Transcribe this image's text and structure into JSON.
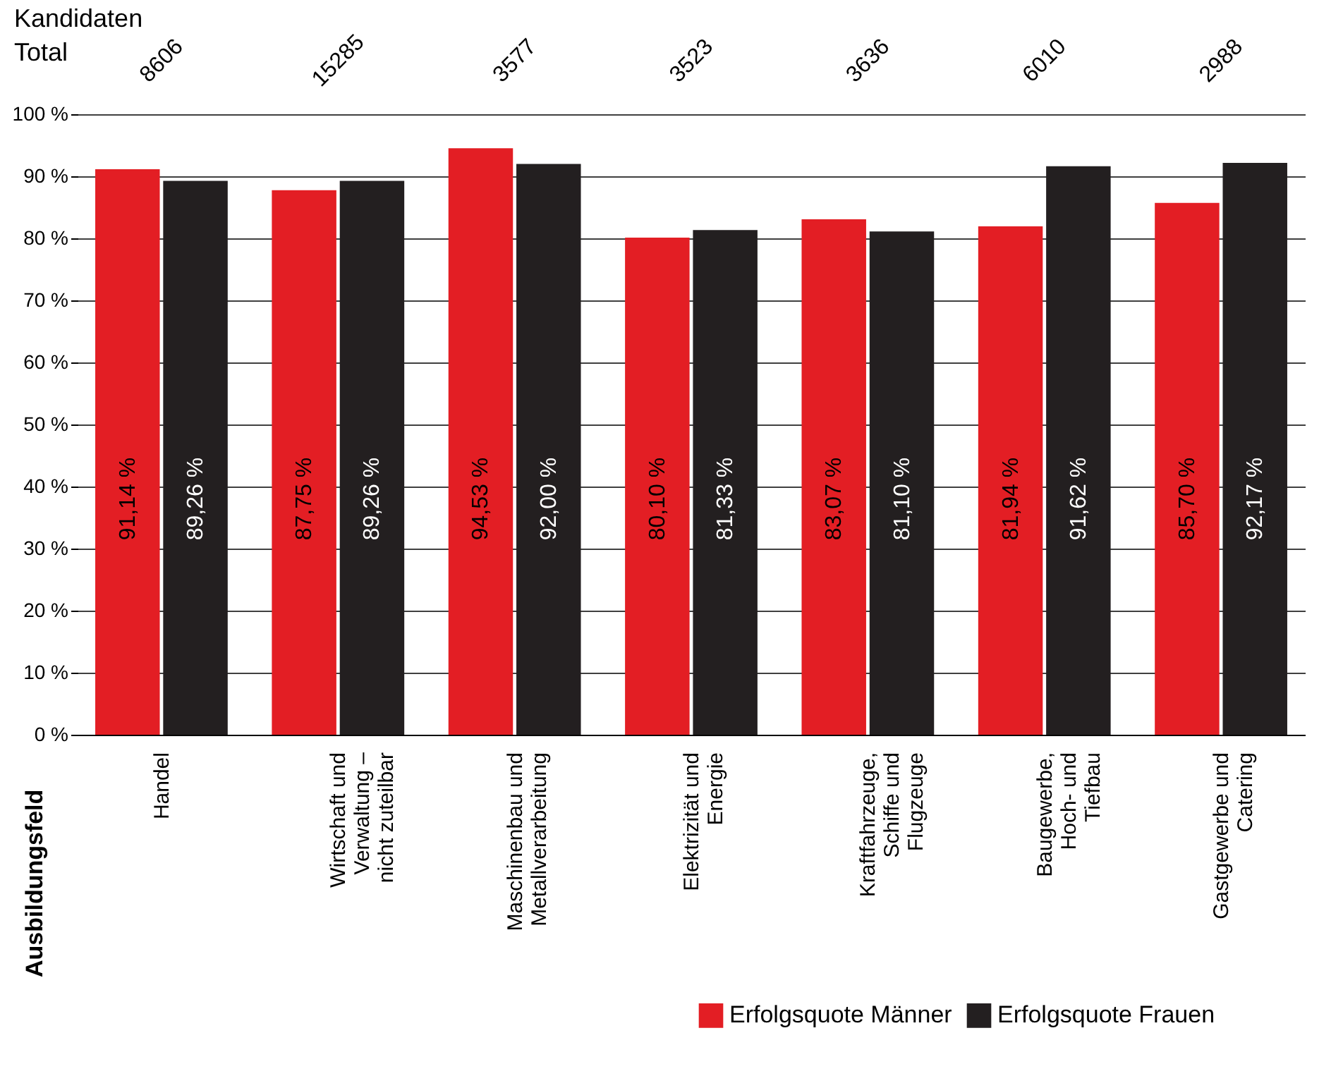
{
  "chart_data": {
    "type": "bar",
    "categories": [
      "Handel",
      "Wirtschaft und Verwaltung – nicht zuteilbar",
      "Maschinenbau und Metallverarbeitung",
      "Elektrizität und Energie",
      "Kraftfahrzeuge, Schiffe und Flugzeuge",
      "Baugewerbe, Hoch- und Tiefbau",
      "Gastgewerbe und Catering"
    ],
    "series": [
      {
        "name": "Erfolgsquote Männer",
        "color": "#e31e24",
        "values": [
          91.14,
          87.75,
          94.53,
          80.1,
          83.07,
          81.94,
          85.7
        ],
        "value_labels": [
          "91,14 %",
          "87,75 %",
          "94,53 %",
          "80,10 %",
          "83,07 %",
          "81,94 %",
          "85,70 %"
        ]
      },
      {
        "name": "Erfolgsquote Frauen",
        "color": "#231f20",
        "values": [
          89.26,
          89.26,
          92.0,
          81.33,
          81.1,
          91.62,
          92.17
        ],
        "value_labels": [
          "89,26 %",
          "89,26 %",
          "92,00 %",
          "81,33 %",
          "81,10 %",
          "91,62 %",
          "92,17 %"
        ]
      }
    ],
    "ylim": [
      0,
      100
    ],
    "yticks": [
      {
        "value": 0,
        "label": "0 %"
      },
      {
        "value": 10,
        "label": "10 %"
      },
      {
        "value": 20,
        "label": "20 %"
      },
      {
        "value": 30,
        "label": "30 %"
      },
      {
        "value": 40,
        "label": "40 %"
      },
      {
        "value": 50,
        "label": "50 %"
      },
      {
        "value": 60,
        "label": "60 %"
      },
      {
        "value": 70,
        "label": "70 %"
      },
      {
        "value": 80,
        "label": "80 %"
      },
      {
        "value": 90,
        "label": "90 %"
      },
      {
        "value": 100,
        "label": "100 %"
      }
    ],
    "grid": "y",
    "legend": "bottom right",
    "annotations": [
      "Kandidaten Total",
      "8606",
      "15285",
      "3577",
      "3523",
      "3636",
      "6010",
      "2988",
      "Ausbildungsfeld"
    ]
  }
}
